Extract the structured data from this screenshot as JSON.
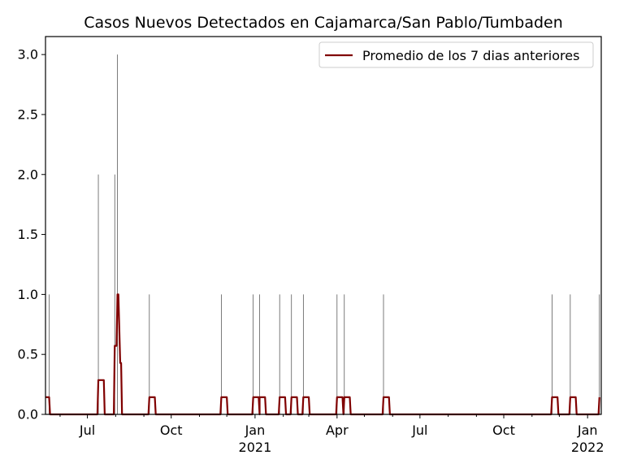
{
  "chart_data": {
    "type": "line",
    "title": "Casos Nuevos Detectados en Cajamarca/San Pablo/Tumbaden",
    "xlabel": "",
    "ylabel": "",
    "x_start": "2020-05-16",
    "x_end": "2022-01-16",
    "ylim": [
      0,
      3.15
    ],
    "yticks": [
      0.0,
      0.5,
      1.0,
      1.5,
      2.0,
      2.5,
      3.0
    ],
    "ytick_labels": [
      "0.0",
      "0.5",
      "1.0",
      "1.5",
      "2.0",
      "2.5",
      "3.0"
    ],
    "xticks": [
      {
        "date": "2020-07-01",
        "label": "Jul",
        "sub": ""
      },
      {
        "date": "2020-10-01",
        "label": "Oct",
        "sub": ""
      },
      {
        "date": "2021-01-01",
        "label": "Jan",
        "sub": "2021"
      },
      {
        "date": "2021-04-01",
        "label": "Apr",
        "sub": ""
      },
      {
        "date": "2021-07-01",
        "label": "Jul",
        "sub": ""
      },
      {
        "date": "2021-10-01",
        "label": "Oct",
        "sub": ""
      },
      {
        "date": "2022-01-01",
        "label": "Jan",
        "sub": "2022"
      }
    ],
    "minor_xticks": [
      "2020-06-01",
      "2020-08-01",
      "2020-09-01",
      "2020-11-01",
      "2020-12-01",
      "2021-02-01",
      "2021-03-01",
      "2021-05-01",
      "2021-06-01",
      "2021-08-01",
      "2021-09-01",
      "2021-11-01",
      "2021-12-01"
    ],
    "grid": false,
    "legend_position": "top-right",
    "series": [
      {
        "name": "Promedio de los 7 dias anteriores",
        "kind": "rolling-average-line",
        "color": "#800000",
        "points": [
          [
            "2020-05-20",
            0.1429
          ],
          [
            "2020-05-21",
            0.0
          ],
          [
            "2020-07-12",
            0.0
          ],
          [
            "2020-07-13",
            0.2857
          ],
          [
            "2020-07-19",
            0.2857
          ],
          [
            "2020-07-20",
            0.0
          ],
          [
            "2020-07-30",
            0.0
          ],
          [
            "2020-07-31",
            0.5714
          ],
          [
            "2020-08-02",
            0.5714
          ],
          [
            "2020-08-03",
            1.0
          ],
          [
            "2020-08-04",
            1.0
          ],
          [
            "2020-08-05",
            0.7143
          ],
          [
            "2020-08-06",
            0.4286
          ],
          [
            "2020-08-07",
            0.4286
          ],
          [
            "2020-08-08",
            0.0
          ],
          [
            "2020-09-06",
            0.0
          ],
          [
            "2020-09-07",
            0.1429
          ],
          [
            "2020-09-13",
            0.1429
          ],
          [
            "2020-09-14",
            0.0
          ],
          [
            "2020-11-24",
            0.0
          ],
          [
            "2020-11-25",
            0.1429
          ],
          [
            "2020-12-01",
            0.1429
          ],
          [
            "2020-12-02",
            0.0
          ],
          [
            "2020-12-29",
            0.0
          ],
          [
            "2020-12-30",
            0.1429
          ],
          [
            "2021-01-05",
            0.1429
          ],
          [
            "2021-01-06",
            0.0
          ],
          [
            "2021-01-06",
            0.1429
          ],
          [
            "2021-01-12",
            0.1429
          ],
          [
            "2021-01-13",
            0.0
          ],
          [
            "2021-01-27",
            0.0
          ],
          [
            "2021-01-28",
            0.1429
          ],
          [
            "2021-02-03",
            0.1429
          ],
          [
            "2021-02-04",
            0.0
          ],
          [
            "2021-02-09",
            0.0
          ],
          [
            "2021-02-10",
            0.1429
          ],
          [
            "2021-02-16",
            0.1429
          ],
          [
            "2021-02-17",
            0.0
          ],
          [
            "2021-02-22",
            0.0
          ],
          [
            "2021-02-23",
            0.1429
          ],
          [
            "2021-03-01",
            0.1429
          ],
          [
            "2021-03-02",
            0.0
          ],
          [
            "2021-03-31",
            0.0
          ],
          [
            "2021-04-01",
            0.1429
          ],
          [
            "2021-04-07",
            0.1429
          ],
          [
            "2021-04-08",
            0.0
          ],
          [
            "2021-04-09",
            0.1429
          ],
          [
            "2021-04-15",
            0.1429
          ],
          [
            "2021-04-16",
            0.0
          ],
          [
            "2021-05-21",
            0.0
          ],
          [
            "2021-05-22",
            0.1429
          ],
          [
            "2021-05-28",
            0.1429
          ],
          [
            "2021-05-29",
            0.0
          ],
          [
            "2021-11-22",
            0.0
          ],
          [
            "2021-11-23",
            0.1429
          ],
          [
            "2021-11-29",
            0.1429
          ],
          [
            "2021-11-30",
            0.0
          ],
          [
            "2021-12-12",
            0.0
          ],
          [
            "2021-12-13",
            0.1429
          ],
          [
            "2021-12-19",
            0.1429
          ],
          [
            "2021-12-20",
            0.0
          ],
          [
            "2022-01-13",
            0.0
          ],
          [
            "2022-01-14",
            0.1429
          ]
        ]
      },
      {
        "name": "",
        "kind": "daily-spikes",
        "color": "#444444",
        "points": [
          [
            "2020-05-20",
            1
          ],
          [
            "2020-07-13",
            2
          ],
          [
            "2020-07-31",
            2
          ],
          [
            "2020-08-03",
            3
          ],
          [
            "2020-09-07",
            1
          ],
          [
            "2020-11-25",
            1
          ],
          [
            "2020-12-30",
            1
          ],
          [
            "2021-01-06",
            1
          ],
          [
            "2021-01-28",
            1
          ],
          [
            "2021-02-10",
            1
          ],
          [
            "2021-02-23",
            1
          ],
          [
            "2021-04-01",
            1
          ],
          [
            "2021-04-09",
            1
          ],
          [
            "2021-05-22",
            1
          ],
          [
            "2021-11-23",
            1
          ],
          [
            "2021-12-13",
            1
          ],
          [
            "2022-01-14",
            1
          ]
        ]
      }
    ]
  }
}
